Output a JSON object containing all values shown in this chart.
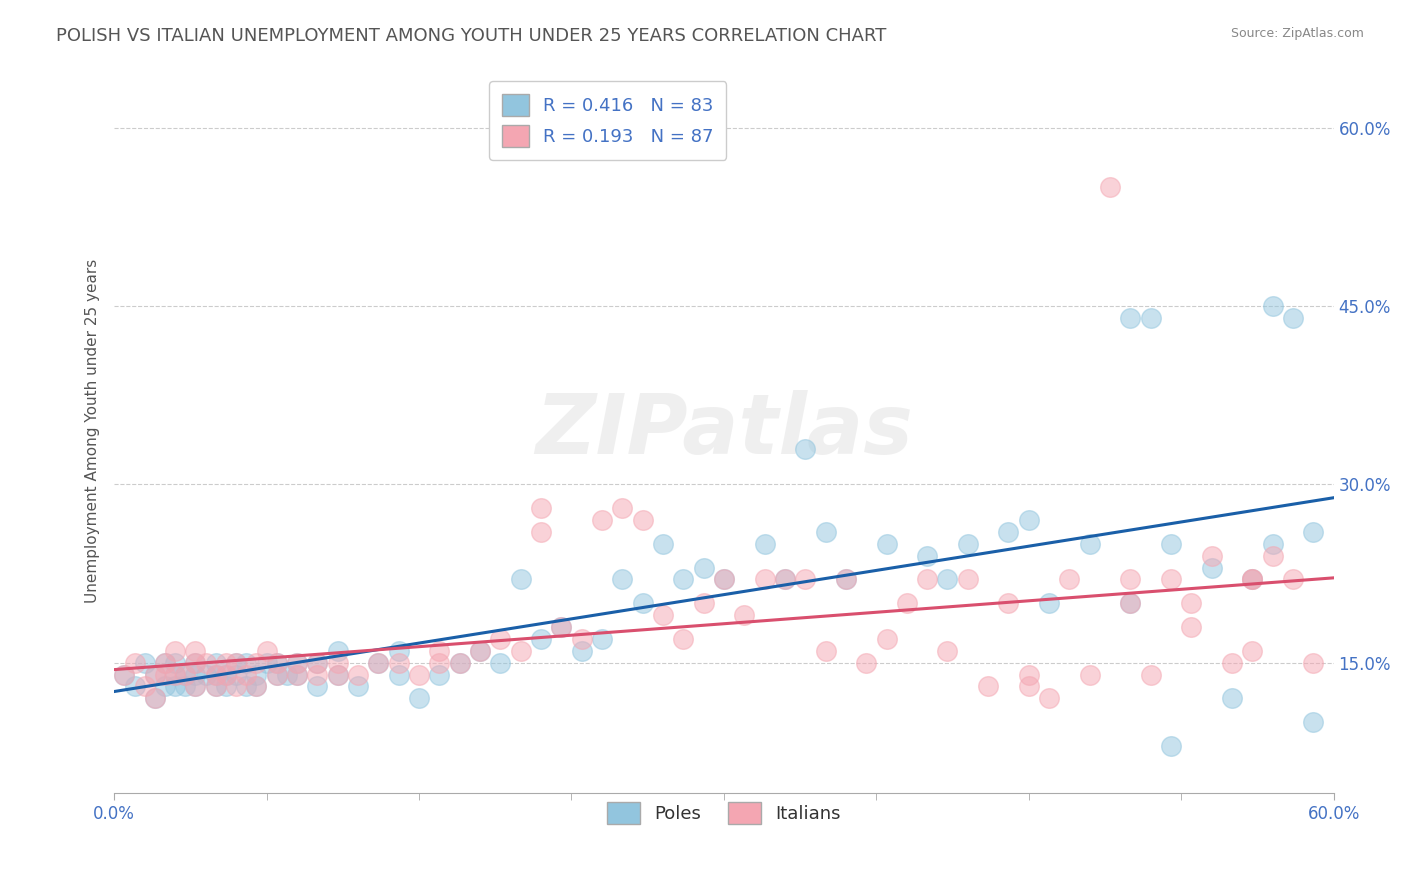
{
  "title": "POLISH VS ITALIAN UNEMPLOYMENT AMONG YOUTH UNDER 25 YEARS CORRELATION CHART",
  "source": "Source: ZipAtlas.com",
  "ylabel": "Unemployment Among Youth under 25 years",
  "xlim": [
    0.0,
    0.6
  ],
  "ylim": [
    0.04,
    0.65
  ],
  "xtick_values": [
    0.0,
    0.6
  ],
  "ytick_values": [
    0.15,
    0.3,
    0.45,
    0.6
  ],
  "poles_color": "#92c5de",
  "italians_color": "#f4a6b2",
  "poles_line_color": "#1a5fa8",
  "italians_line_color": "#d94f6e",
  "poles_R": 0.416,
  "poles_N": 83,
  "italians_R": 0.193,
  "italians_N": 87,
  "legend_label_poles": "Poles",
  "legend_label_italians": "Italians",
  "watermark": "ZIPatlas",
  "background_color": "#ffffff",
  "grid_color": "#cccccc",
  "title_color": "#555555",
  "poles_scatter_x": [
    0.005,
    0.01,
    0.015,
    0.02,
    0.02,
    0.025,
    0.025,
    0.03,
    0.03,
    0.03,
    0.035,
    0.035,
    0.04,
    0.04,
    0.04,
    0.045,
    0.05,
    0.05,
    0.05,
    0.055,
    0.055,
    0.06,
    0.06,
    0.065,
    0.065,
    0.07,
    0.07,
    0.075,
    0.08,
    0.08,
    0.085,
    0.09,
    0.09,
    0.1,
    0.1,
    0.11,
    0.11,
    0.12,
    0.13,
    0.14,
    0.14,
    0.15,
    0.16,
    0.17,
    0.18,
    0.19,
    0.2,
    0.21,
    0.22,
    0.23,
    0.24,
    0.25,
    0.26,
    0.27,
    0.28,
    0.29,
    0.3,
    0.32,
    0.33,
    0.34,
    0.35,
    0.36,
    0.38,
    0.4,
    0.41,
    0.42,
    0.44,
    0.45,
    0.46,
    0.48,
    0.5,
    0.51,
    0.52,
    0.54,
    0.55,
    0.56,
    0.57,
    0.58,
    0.59,
    0.59,
    0.5,
    0.52,
    0.57
  ],
  "poles_scatter_y": [
    0.14,
    0.13,
    0.15,
    0.14,
    0.12,
    0.13,
    0.15,
    0.14,
    0.13,
    0.15,
    0.14,
    0.13,
    0.14,
    0.13,
    0.15,
    0.14,
    0.13,
    0.14,
    0.15,
    0.14,
    0.13,
    0.14,
    0.15,
    0.13,
    0.15,
    0.14,
    0.13,
    0.15,
    0.14,
    0.15,
    0.14,
    0.14,
    0.15,
    0.13,
    0.15,
    0.14,
    0.16,
    0.13,
    0.15,
    0.14,
    0.16,
    0.12,
    0.14,
    0.15,
    0.16,
    0.15,
    0.22,
    0.17,
    0.18,
    0.16,
    0.17,
    0.22,
    0.2,
    0.25,
    0.22,
    0.23,
    0.22,
    0.25,
    0.22,
    0.33,
    0.26,
    0.22,
    0.25,
    0.24,
    0.22,
    0.25,
    0.26,
    0.27,
    0.2,
    0.25,
    0.44,
    0.44,
    0.25,
    0.23,
    0.12,
    0.22,
    0.25,
    0.44,
    0.26,
    0.1,
    0.2,
    0.08,
    0.45
  ],
  "italians_scatter_x": [
    0.005,
    0.01,
    0.015,
    0.02,
    0.02,
    0.025,
    0.025,
    0.03,
    0.03,
    0.035,
    0.04,
    0.04,
    0.04,
    0.045,
    0.05,
    0.05,
    0.055,
    0.055,
    0.06,
    0.06,
    0.065,
    0.07,
    0.07,
    0.075,
    0.08,
    0.08,
    0.09,
    0.09,
    0.1,
    0.1,
    0.11,
    0.11,
    0.12,
    0.13,
    0.14,
    0.15,
    0.16,
    0.16,
    0.17,
    0.18,
    0.19,
    0.2,
    0.21,
    0.22,
    0.23,
    0.24,
    0.25,
    0.26,
    0.27,
    0.28,
    0.29,
    0.3,
    0.31,
    0.32,
    0.33,
    0.34,
    0.35,
    0.36,
    0.37,
    0.38,
    0.39,
    0.4,
    0.41,
    0.42,
    0.43,
    0.44,
    0.45,
    0.46,
    0.47,
    0.48,
    0.49,
    0.5,
    0.51,
    0.52,
    0.53,
    0.54,
    0.55,
    0.56,
    0.57,
    0.58,
    0.59,
    0.45,
    0.5,
    0.53,
    0.56,
    0.21,
    0.56
  ],
  "italians_scatter_y": [
    0.14,
    0.15,
    0.13,
    0.14,
    0.12,
    0.15,
    0.14,
    0.14,
    0.16,
    0.14,
    0.15,
    0.13,
    0.16,
    0.15,
    0.14,
    0.13,
    0.15,
    0.14,
    0.15,
    0.13,
    0.14,
    0.15,
    0.13,
    0.16,
    0.14,
    0.15,
    0.14,
    0.15,
    0.14,
    0.15,
    0.14,
    0.15,
    0.14,
    0.15,
    0.15,
    0.14,
    0.15,
    0.16,
    0.15,
    0.16,
    0.17,
    0.16,
    0.26,
    0.18,
    0.17,
    0.27,
    0.28,
    0.27,
    0.19,
    0.17,
    0.2,
    0.22,
    0.19,
    0.22,
    0.22,
    0.22,
    0.16,
    0.22,
    0.15,
    0.17,
    0.2,
    0.22,
    0.16,
    0.22,
    0.13,
    0.2,
    0.14,
    0.12,
    0.22,
    0.14,
    0.55,
    0.22,
    0.14,
    0.22,
    0.2,
    0.24,
    0.15,
    0.22,
    0.24,
    0.22,
    0.15,
    0.13,
    0.2,
    0.18,
    0.22,
    0.28,
    0.16
  ]
}
